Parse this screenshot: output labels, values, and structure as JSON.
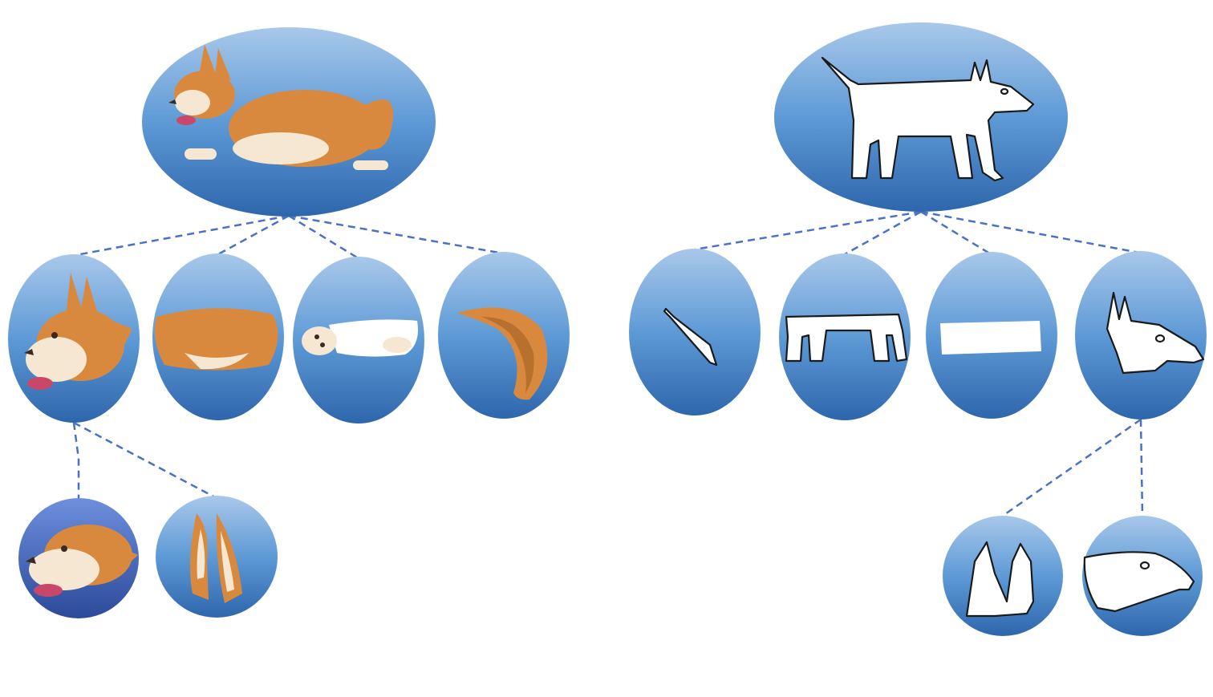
{
  "diagram": {
    "title": "",
    "colors": {
      "node_top": "#a9c8ea",
      "node_mid": "#5e9ad6",
      "node_bottom": "#2e66ac",
      "node_dark_top": "#6d8fdc",
      "node_dark_bottom": "#2b4a9a",
      "connector": "#4a72c4",
      "photo_fur": "#d9893e",
      "sketch_fill": "#ffffff"
    },
    "trees": [
      {
        "name": "photo-tree",
        "root": {
          "id": "photo-root",
          "icon": "corgi-photo-icon",
          "depicts": "whole-dog"
        },
        "parts": [
          {
            "id": "photo-head",
            "icon": "corgi-head-icon",
            "depicts": "head"
          },
          {
            "id": "photo-body",
            "icon": "corgi-body-icon",
            "depicts": "body"
          },
          {
            "id": "photo-legs",
            "icon": "corgi-legs-icon",
            "depicts": "legs"
          },
          {
            "id": "photo-tail",
            "icon": "corgi-tail-icon",
            "depicts": "tail"
          }
        ],
        "subparts": [
          {
            "id": "photo-face",
            "parent": "photo-head",
            "icon": "corgi-face-icon",
            "depicts": "face"
          },
          {
            "id": "photo-ear",
            "parent": "photo-head",
            "icon": "corgi-ear-icon",
            "depicts": "ears"
          }
        ]
      },
      {
        "name": "sketch-tree",
        "root": {
          "id": "sketch-root",
          "icon": "dog-sketch-icon",
          "depicts": "whole-dog"
        },
        "parts": [
          {
            "id": "sketch-tail",
            "icon": "sketch-tail-icon",
            "depicts": "tail"
          },
          {
            "id": "sketch-legs",
            "icon": "sketch-legs-icon",
            "depicts": "legs"
          },
          {
            "id": "sketch-body",
            "icon": "sketch-body-icon",
            "depicts": "body"
          },
          {
            "id": "sketch-head",
            "icon": "sketch-head-icon",
            "depicts": "head"
          }
        ],
        "subparts": [
          {
            "id": "sketch-ears",
            "parent": "sketch-head",
            "icon": "sketch-ears-icon",
            "depicts": "ears"
          },
          {
            "id": "sketch-face",
            "parent": "sketch-head",
            "icon": "sketch-face-icon",
            "depicts": "face"
          }
        ]
      }
    ]
  }
}
